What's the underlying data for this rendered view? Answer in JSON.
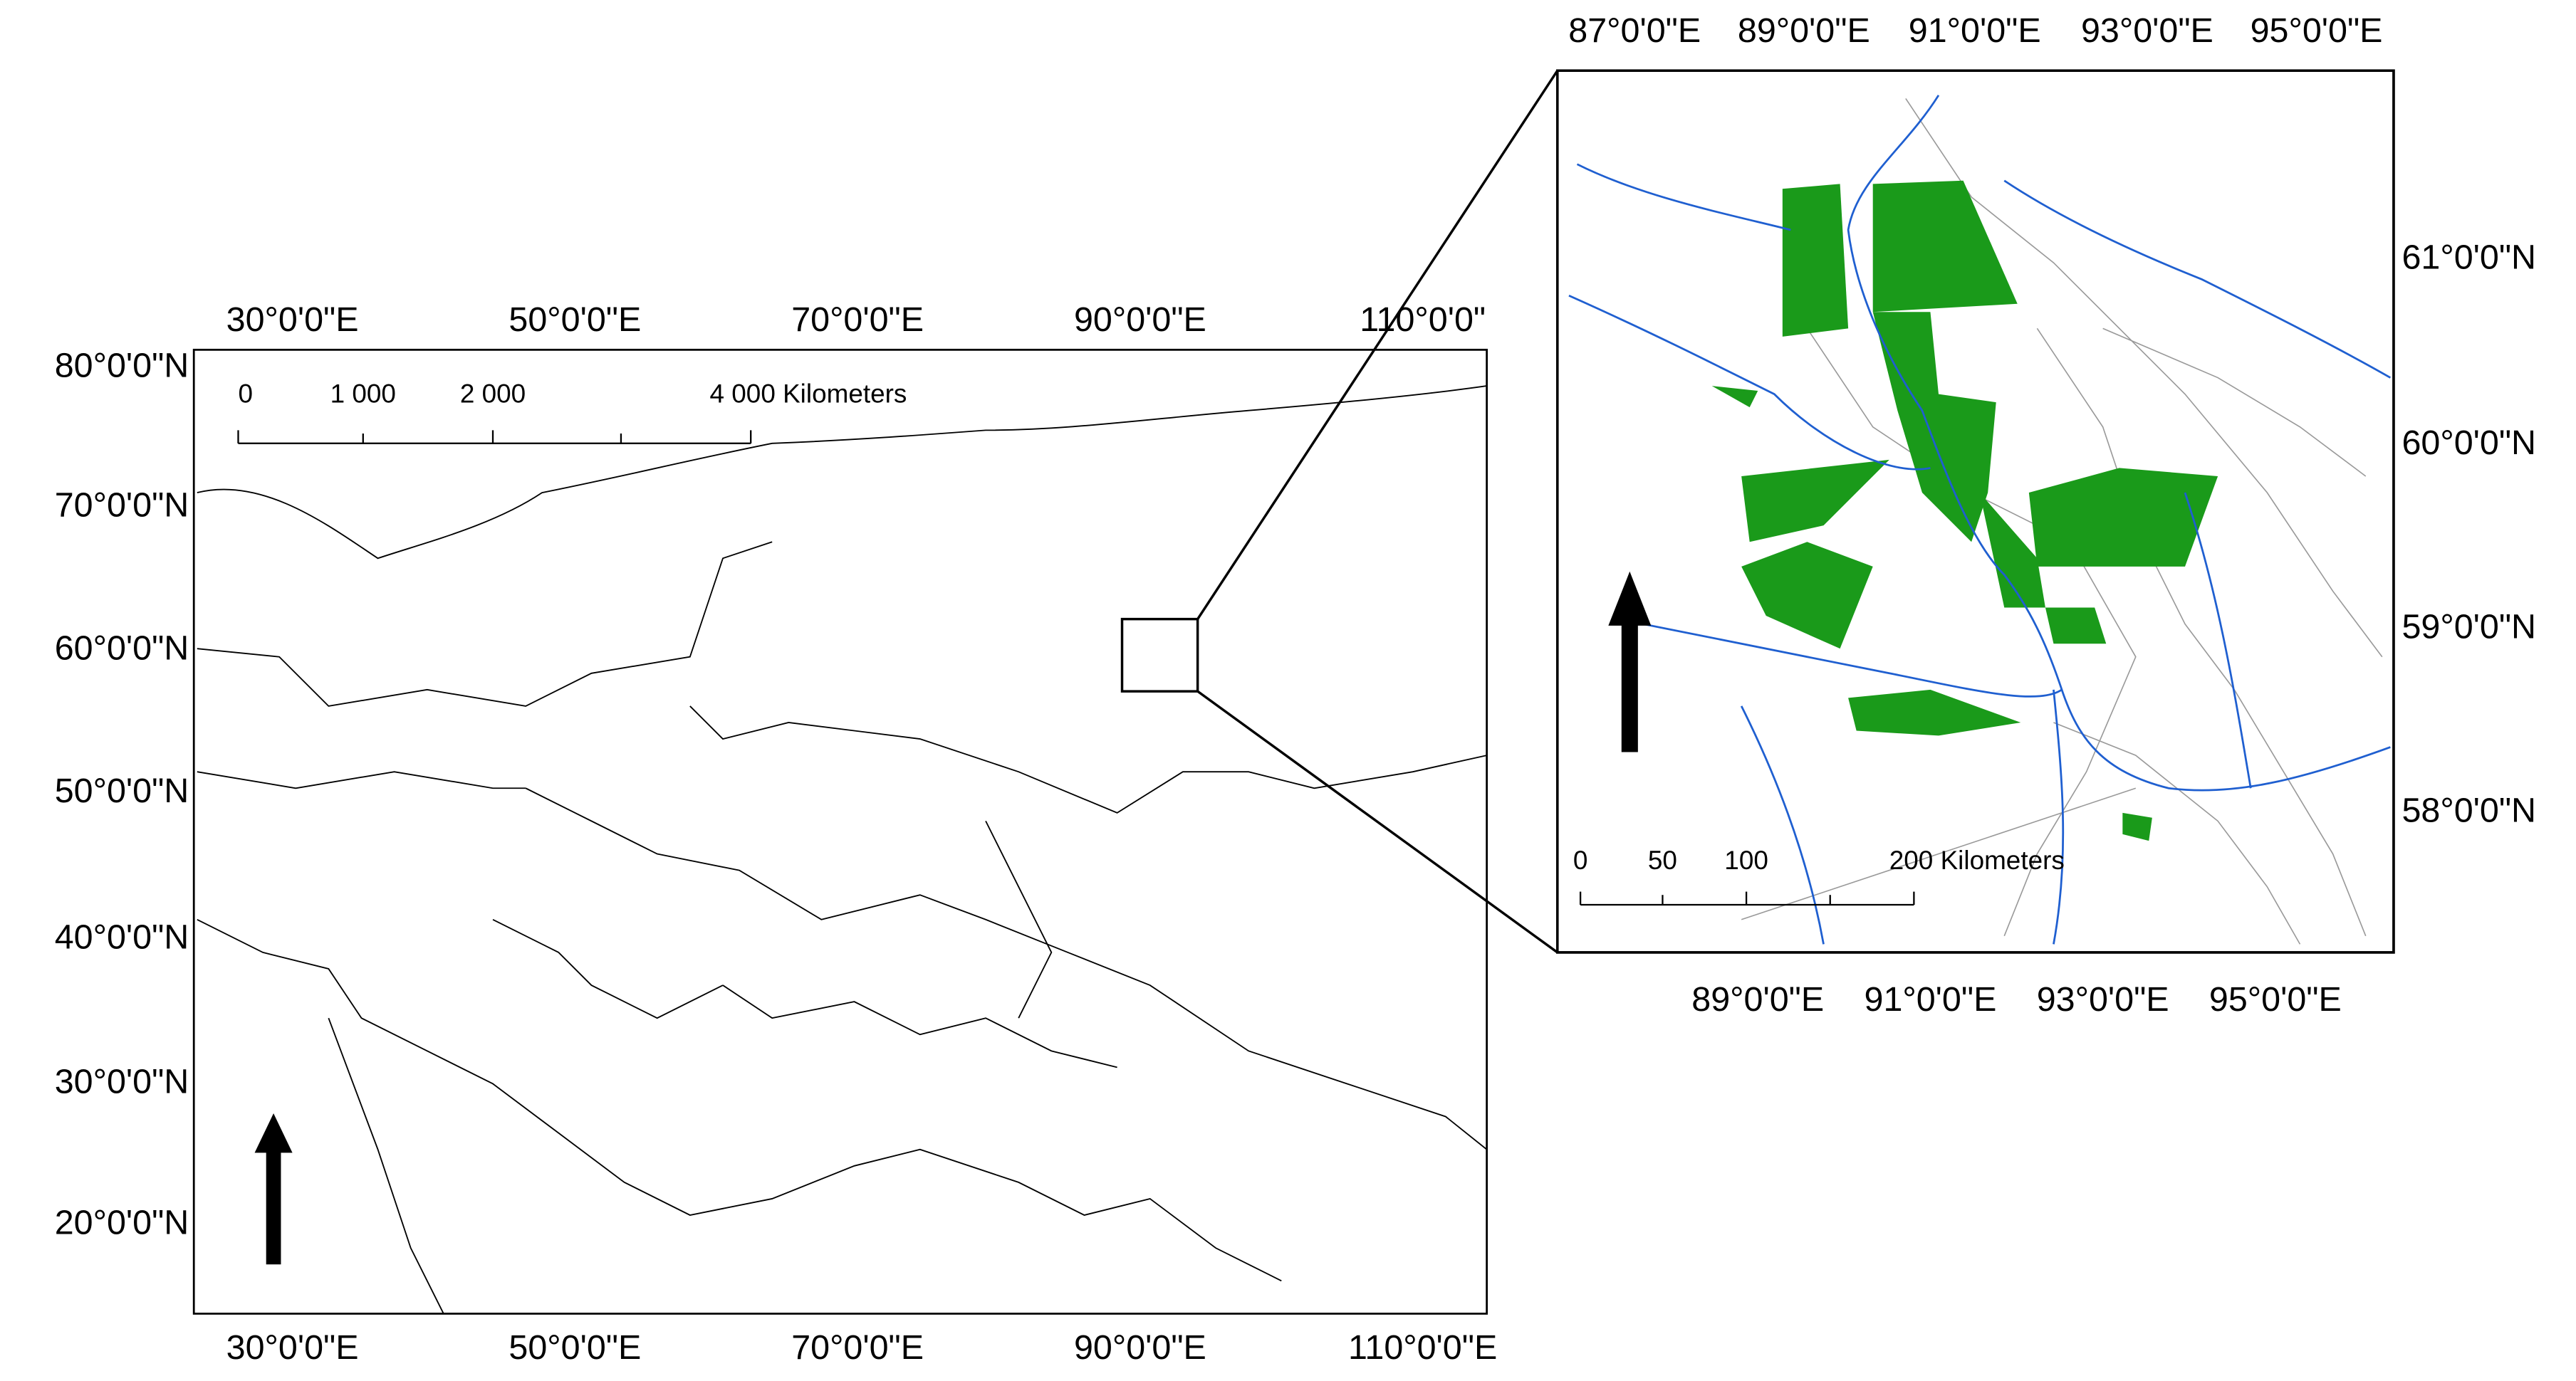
{
  "overview_map": {
    "top_labels": [
      "30°0'0\"E",
      "50°0'0\"E",
      "70°0'0\"E",
      "90°0'0\"E",
      "110°0'0\""
    ],
    "bottom_labels": [
      "30°0'0\"E",
      "50°0'0\"E",
      "70°0'0\"E",
      "90°0'0\"E",
      "110°0'0\"E"
    ],
    "left_labels": [
      "80°0'0\"N",
      "70°0'0\"N",
      "60°0'0\"N",
      "50°0'0\"N",
      "40°0'0\"N",
      "30°0'0\"N",
      "20°0'0\"N"
    ],
    "scale_labels": [
      "0",
      "1 000",
      "2 000",
      "4 000 Kilometers"
    ]
  },
  "detail_map": {
    "top_labels": [
      "87°0'0\"E",
      "89°0'0\"E",
      "91°0'0\"E",
      "93°0'0\"E",
      "95°0'0\"E"
    ],
    "bottom_labels": [
      "89°0'0\"E",
      "91°0'0\"E",
      "93°0'0\"E",
      "95°0'0\"E"
    ],
    "right_labels": [
      "61°0'0\"N",
      "60°0'0\"N",
      "59°0'0\"N",
      "58°0'0\"N"
    ],
    "scale_labels": [
      "0",
      "50",
      "100",
      "200 Kilometers"
    ]
  }
}
